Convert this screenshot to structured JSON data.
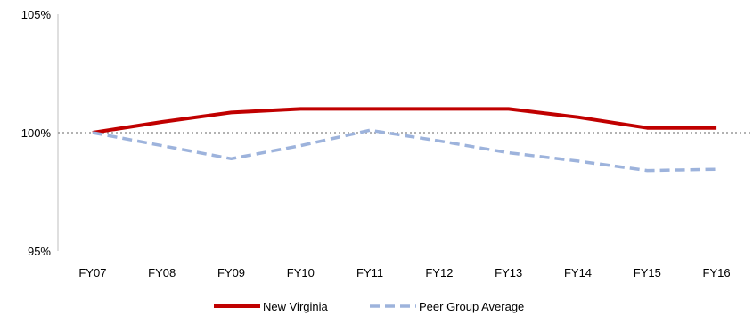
{
  "chart_data": {
    "type": "line",
    "x": [
      "FY07",
      "FY08",
      "FY09",
      "FY10",
      "FY11",
      "FY12",
      "FY13",
      "FY14",
      "FY15",
      "FY16"
    ],
    "ylim": [
      95,
      105
    ],
    "y_ticks": [
      95,
      100,
      105
    ],
    "y_tick_labels": [
      "95%",
      "100%",
      "105%"
    ],
    "reference_line": {
      "value": 100,
      "style": "dotted",
      "color": "#999999"
    },
    "series": [
      {
        "name": "New Virginia",
        "color": "#C00000",
        "style": "solid",
        "values": [
          100.0,
          100.45,
          100.85,
          101.0,
          101.0,
          101.0,
          101.0,
          100.65,
          100.2,
          100.2
        ]
      },
      {
        "name": "Peer Group Average",
        "color": "#9DB3DC",
        "style": "dashed",
        "values": [
          100.0,
          99.45,
          98.9,
          99.45,
          100.1,
          99.65,
          99.15,
          98.8,
          98.4,
          98.45
        ]
      }
    ],
    "legend_position": "bottom",
    "grid": false
  }
}
